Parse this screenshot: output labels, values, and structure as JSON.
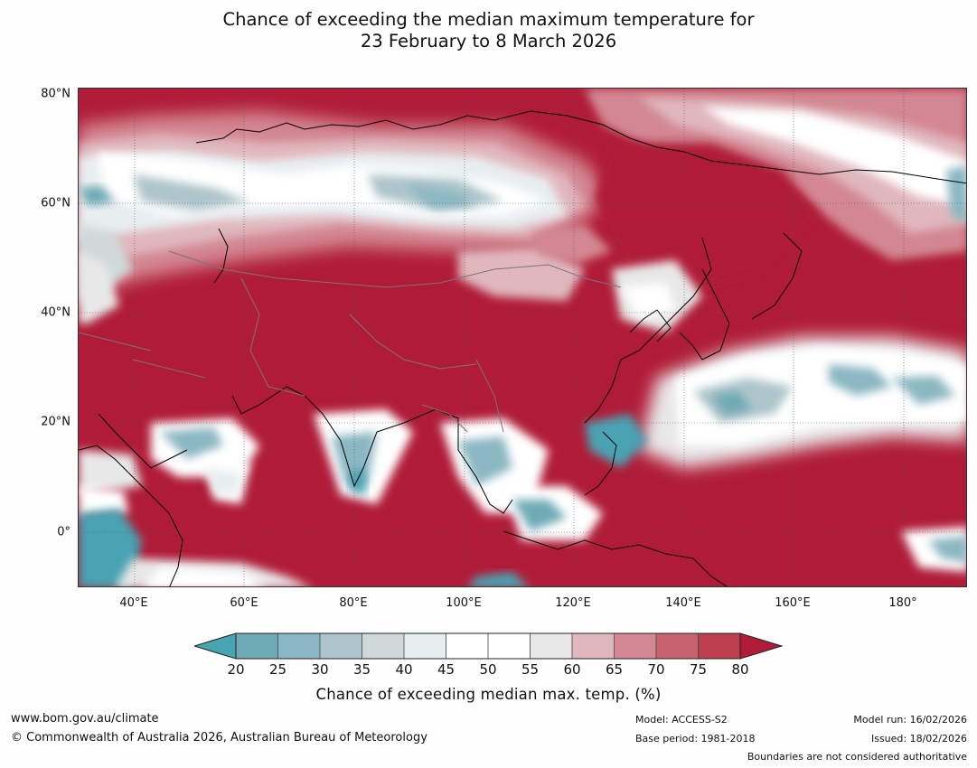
{
  "title_line1": "Chance of exceeding the median maximum temperature for",
  "title_line2": "23 February to 8 March 2026",
  "lat_labels": [
    "80°N",
    "60°N",
    "40°N",
    "20°N",
    "0°"
  ],
  "lon_labels": [
    "40°E",
    "60°E",
    "80°E",
    "100°E",
    "120°E",
    "140°E",
    "160°E",
    "180°"
  ],
  "colorbar": {
    "ticks": [
      "20",
      "25",
      "30",
      "35",
      "40",
      "45",
      "50",
      "55",
      "60",
      "65",
      "70",
      "75",
      "80"
    ],
    "colors": {
      "below20": "#48a3b2",
      "b20_25": "#6eaab6",
      "b25_30": "#8bb7c2",
      "b30_35": "#adc5cb",
      "b35_40": "#d0d9da",
      "b40_45": "#e8eef0",
      "b45_50": "#ffffff",
      "b50_55": "#ffffff",
      "b55_60": "#e8e8e8",
      "b60_65": "#e0b7bd",
      "b65_70": "#d38792",
      "b70_75": "#c7636f",
      "b75_80": "#bc3f4e",
      "above80": "#b01c38"
    },
    "label": "Chance of exceeding median max. temp. (%)"
  },
  "footer": {
    "website": "www.bom.gov.au/climate",
    "copyright": "© Commonwealth of Australia 2026, Australian Bureau of Meteorology",
    "model": "Model: ACCESS-S2",
    "base_period": "Base period: 1981-2018",
    "model_run": "Model run: 16/02/2026",
    "issued": "Issued: 18/02/2026",
    "disclaimer": "Boundaries are not considered authoritative"
  }
}
